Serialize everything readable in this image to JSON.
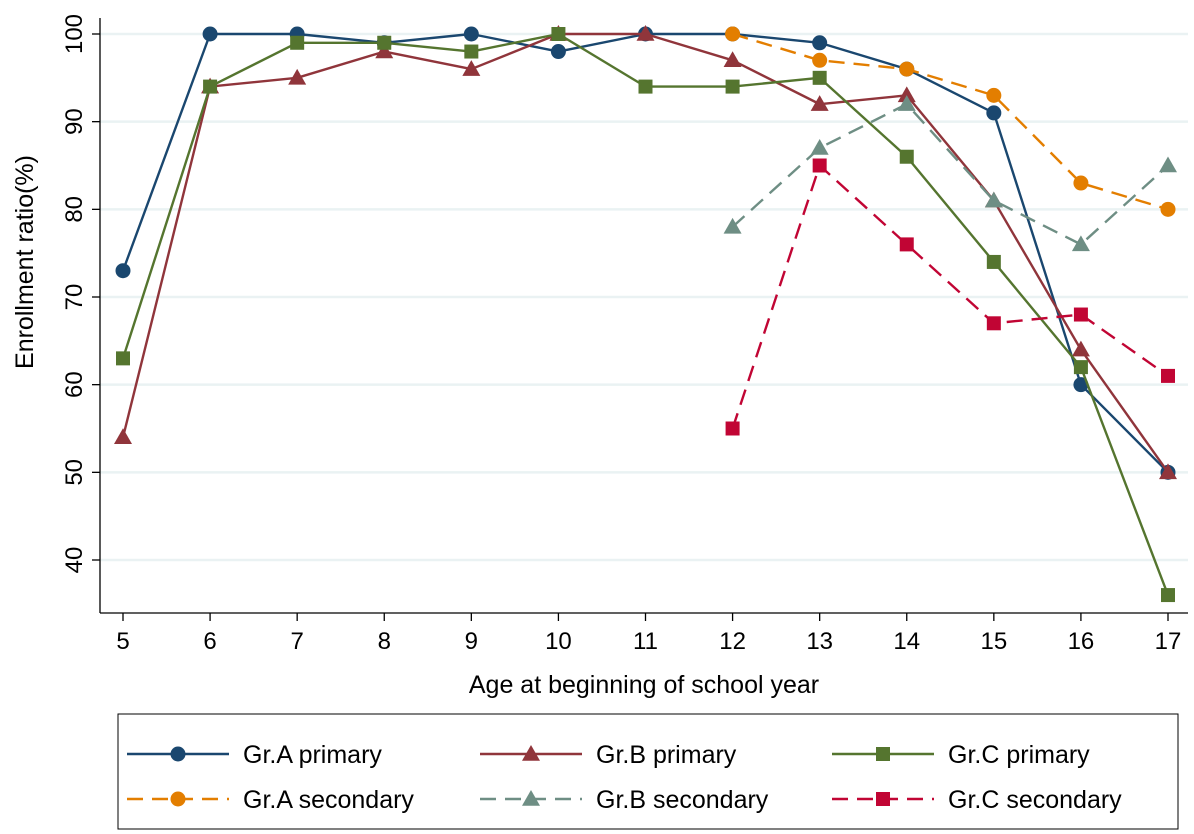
{
  "chart_data": {
    "type": "line",
    "xlabel": "Age at beginning of school year",
    "ylabel": "Enrollment ratio(%)",
    "xlim": [
      5,
      17
    ],
    "ylim": [
      40,
      100
    ],
    "x_ticks": [
      "5",
      "6",
      "7",
      "8",
      "9",
      "10",
      "11",
      "12",
      "13",
      "14",
      "15",
      "16",
      "17"
    ],
    "y_ticks": [
      "40",
      "50",
      "60",
      "70",
      "80",
      "90",
      "100"
    ],
    "grid": "horizontal",
    "legend_position": "bottom",
    "series": [
      {
        "name": "Gr.A primary",
        "color": "#1a476f",
        "marker": "circle",
        "dash": false,
        "x": [
          5,
          6,
          7,
          8,
          9,
          10,
          11,
          12,
          13,
          14,
          15,
          16,
          17
        ],
        "values": [
          73,
          100,
          100,
          99,
          100,
          98,
          100,
          100,
          99,
          96,
          91,
          60,
          50
        ]
      },
      {
        "name": "Gr.B primary",
        "color": "#90353b",
        "marker": "triangle",
        "dash": false,
        "x": [
          5,
          6,
          7,
          8,
          9,
          10,
          11,
          12,
          13,
          14,
          15,
          16,
          17
        ],
        "values": [
          54,
          94,
          95,
          98,
          96,
          100,
          100,
          97,
          92,
          93,
          81,
          64,
          50
        ]
      },
      {
        "name": "Gr.C primary",
        "color": "#55752f",
        "marker": "square",
        "dash": false,
        "x": [
          5,
          6,
          7,
          8,
          9,
          10,
          11,
          12,
          13,
          14,
          15,
          16,
          17
        ],
        "values": [
          63,
          94,
          99,
          99,
          98,
          100,
          94,
          94,
          95,
          86,
          74,
          62,
          36
        ]
      },
      {
        "name": "Gr.A secondary",
        "color": "#e37e00",
        "marker": "circle",
        "dash": true,
        "x": [
          12,
          13,
          14,
          15,
          16,
          17
        ],
        "values": [
          100,
          97,
          96,
          93,
          83,
          80
        ]
      },
      {
        "name": "Gr.B secondary",
        "color": "#6e8e84",
        "marker": "triangle",
        "dash": true,
        "x": [
          12,
          13,
          14,
          15,
          16,
          17
        ],
        "values": [
          78,
          87,
          92,
          81,
          76,
          85
        ]
      },
      {
        "name": "Gr.C secondary",
        "color": "#c10534",
        "marker": "square",
        "dash": true,
        "x": [
          12,
          13,
          14,
          15,
          16,
          17
        ],
        "values": [
          55,
          85,
          76,
          67,
          68,
          61
        ]
      }
    ]
  }
}
